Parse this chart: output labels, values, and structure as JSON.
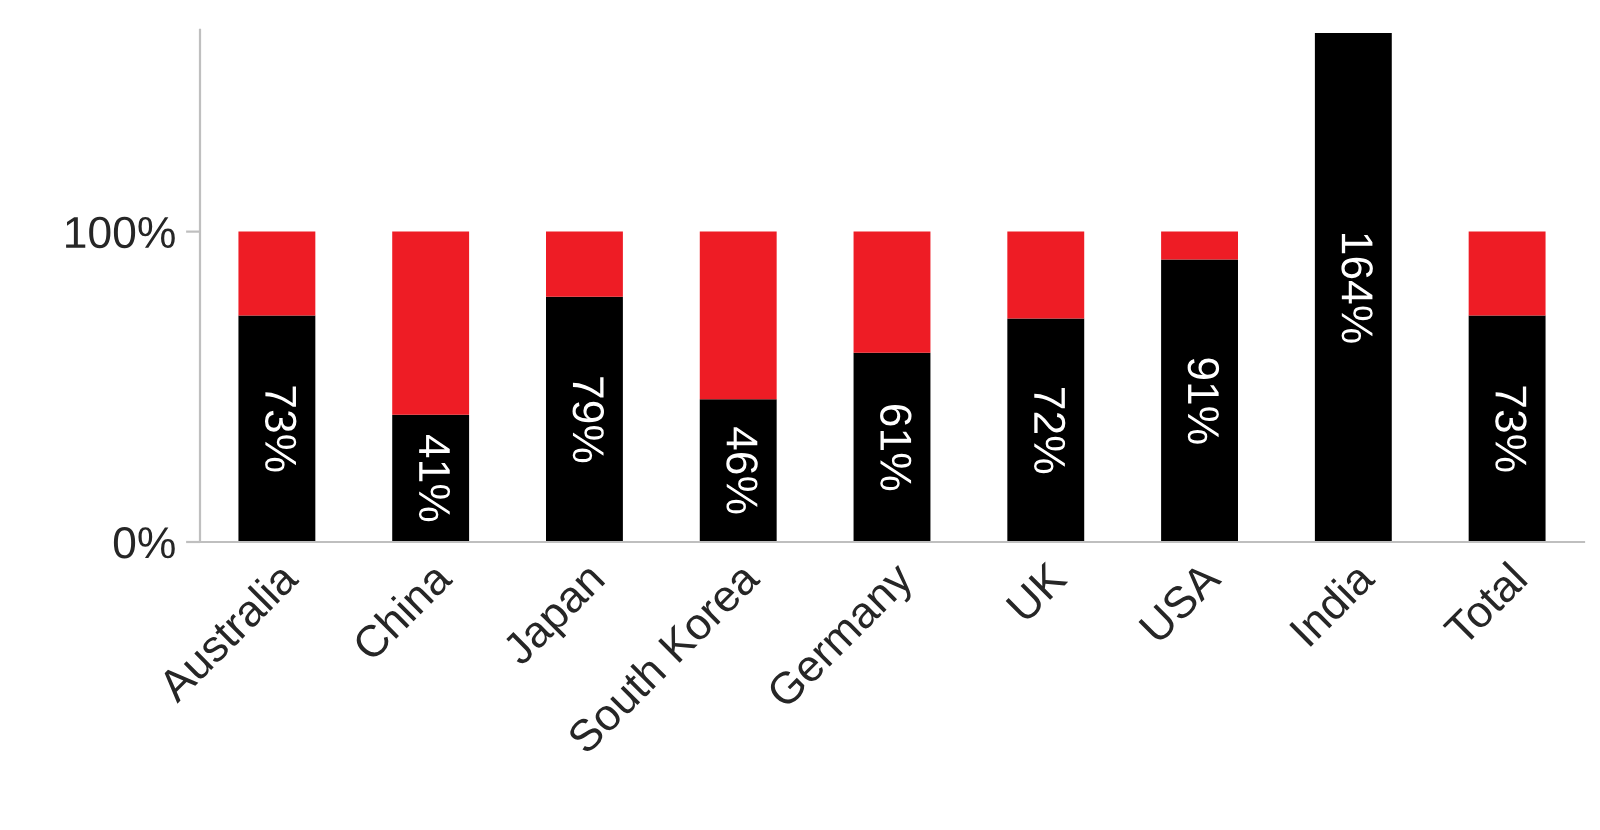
{
  "chart_data": {
    "type": "bar",
    "stacked": true,
    "categories": [
      "Australia",
      "China",
      "Japan",
      "South Korea",
      "Germany",
      "UK",
      "USA",
      "India",
      "Total"
    ],
    "series": [
      {
        "color": "#000000",
        "values": [
          73,
          41,
          79,
          46,
          61,
          72,
          91,
          164,
          73
        ],
        "value_labels": [
          "73%",
          "41%",
          "79%",
          "46%",
          "61%",
          "72%",
          "91%",
          "164%",
          "73%"
        ]
      },
      {
        "color": "#ee1c25",
        "values": [
          27,
          59,
          21,
          54,
          39,
          28,
          9,
          0,
          27
        ]
      }
    ],
    "ylim": [
      0,
      165
    ],
    "yticks": [
      {
        "value": 0,
        "label": "0%"
      },
      {
        "value": 100,
        "label": "100%"
      }
    ],
    "grid": false,
    "legend": false
  }
}
